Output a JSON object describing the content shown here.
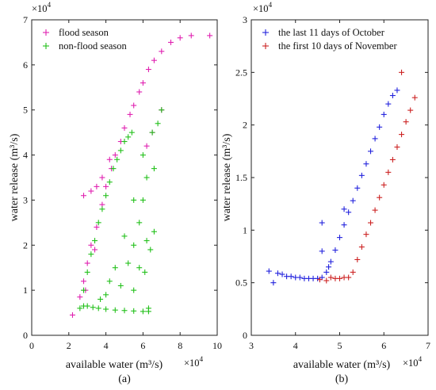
{
  "chart_data": [
    {
      "type": "scatter",
      "panel_label": "(a)",
      "xlabel": "available water (m³/s)",
      "ylabel": "water release (m³/s)",
      "x_multiplier": "×10",
      "x_exponent": "4",
      "y_multiplier": "×10",
      "y_exponent": "4",
      "xlim": [
        0,
        10
      ],
      "ylim": [
        0,
        7
      ],
      "xticks": [
        "0",
        "2",
        "4",
        "6",
        "8",
        "10"
      ],
      "yticks": [
        "0",
        "1",
        "2",
        "3",
        "4",
        "5",
        "6",
        "7"
      ],
      "legend_position": "top-left",
      "grid": false,
      "series": [
        {
          "name": "flood season",
          "color": "#e020b0",
          "marker": "+",
          "points": [
            [
              2.2,
              0.45
            ],
            [
              2.6,
              0.85
            ],
            [
              2.8,
              1.2
            ],
            [
              3.0,
              1.6
            ],
            [
              3.2,
              2.0
            ],
            [
              3.5,
              2.4
            ],
            [
              3.8,
              2.9
            ],
            [
              4.0,
              3.3
            ],
            [
              4.3,
              3.7
            ],
            [
              4.5,
              4.0
            ],
            [
              4.8,
              4.3
            ],
            [
              5.0,
              4.6
            ],
            [
              5.3,
              4.9
            ],
            [
              5.5,
              5.1
            ],
            [
              5.8,
              5.4
            ],
            [
              6.0,
              5.6
            ],
            [
              6.3,
              5.9
            ],
            [
              6.6,
              6.1
            ],
            [
              7.0,
              6.3
            ],
            [
              7.5,
              6.5
            ],
            [
              8.0,
              6.6
            ],
            [
              8.6,
              6.65
            ],
            [
              9.6,
              6.65
            ],
            [
              2.8,
              3.1
            ],
            [
              3.2,
              3.2
            ],
            [
              3.5,
              3.3
            ],
            [
              3.8,
              3.5
            ],
            [
              4.2,
              3.9
            ],
            [
              2.9,
              1.0
            ],
            [
              3.4,
              1.9
            ],
            [
              6.2,
              4.2
            ],
            [
              6.5,
              4.5
            ],
            [
              7.0,
              5.0
            ]
          ]
        },
        {
          "name": "non-flood season",
          "color": "#22c01a",
          "marker": "+",
          "points": [
            [
              2.6,
              0.6
            ],
            [
              2.8,
              0.65
            ],
            [
              3.0,
              0.65
            ],
            [
              3.3,
              0.62
            ],
            [
              3.6,
              0.6
            ],
            [
              4.0,
              0.58
            ],
            [
              4.5,
              0.56
            ],
            [
              5.0,
              0.55
            ],
            [
              5.5,
              0.54
            ],
            [
              6.0,
              0.53
            ],
            [
              6.3,
              0.53
            ],
            [
              6.3,
              0.6
            ],
            [
              2.8,
              1.0
            ],
            [
              3.0,
              1.4
            ],
            [
              3.2,
              1.8
            ],
            [
              3.4,
              2.1
            ],
            [
              3.6,
              2.5
            ],
            [
              3.8,
              2.8
            ],
            [
              4.0,
              3.1
            ],
            [
              4.2,
              3.4
            ],
            [
              4.4,
              3.7
            ],
            [
              4.6,
              3.9
            ],
            [
              4.8,
              4.1
            ],
            [
              5.0,
              4.3
            ],
            [
              5.2,
              4.4
            ],
            [
              5.4,
              4.5
            ],
            [
              5.5,
              1.0
            ],
            [
              5.5,
              2.0
            ],
            [
              5.5,
              3.0
            ],
            [
              5.8,
              1.5
            ],
            [
              5.8,
              2.5
            ],
            [
              6.0,
              3.0
            ],
            [
              6.0,
              4.0
            ],
            [
              6.2,
              2.1
            ],
            [
              6.2,
              3.5
            ],
            [
              6.5,
              4.5
            ],
            [
              6.6,
              3.7
            ],
            [
              6.8,
              4.7
            ],
            [
              7.0,
              5.0
            ],
            [
              4.0,
              0.9
            ],
            [
              4.5,
              1.5
            ],
            [
              5.0,
              2.2
            ],
            [
              4.2,
              1.2
            ],
            [
              3.7,
              0.8
            ],
            [
              4.8,
              1.1
            ],
            [
              5.2,
              1.6
            ],
            [
              6.1,
              1.4
            ],
            [
              6.4,
              1.9
            ],
            [
              6.6,
              2.3
            ]
          ]
        }
      ]
    },
    {
      "type": "scatter",
      "panel_label": "(b)",
      "xlabel": "available water (m³/s)",
      "ylabel": "water release (m³/s)",
      "x_multiplier": "×10",
      "x_exponent": "4",
      "y_multiplier": "×10",
      "y_exponent": "4",
      "xlim": [
        3,
        7
      ],
      "ylim": [
        0,
        3
      ],
      "xticks": [
        "3",
        "4",
        "5",
        "6",
        "7"
      ],
      "yticks": [
        "0",
        "0.5",
        "1",
        "1.5",
        "2",
        "2.5",
        "3"
      ],
      "legend_position": "top-left",
      "grid": false,
      "series": [
        {
          "name": "the last 11 days of October",
          "color": "#2222dd",
          "marker": "+",
          "points": [
            [
              3.4,
              0.61
            ],
            [
              3.5,
              0.5
            ],
            [
              3.6,
              0.59
            ],
            [
              3.7,
              0.58
            ],
            [
              3.8,
              0.56
            ],
            [
              3.9,
              0.56
            ],
            [
              4.0,
              0.55
            ],
            [
              4.1,
              0.55
            ],
            [
              4.2,
              0.54
            ],
            [
              4.3,
              0.54
            ],
            [
              4.4,
              0.54
            ],
            [
              4.5,
              0.54
            ],
            [
              4.6,
              0.55
            ],
            [
              4.6,
              1.07
            ],
            [
              4.6,
              0.8
            ],
            [
              4.7,
              0.6
            ],
            [
              4.75,
              0.65
            ],
            [
              4.8,
              0.7
            ],
            [
              4.9,
              0.81
            ],
            [
              5.0,
              0.93
            ],
            [
              5.1,
              1.05
            ],
            [
              5.1,
              1.2
            ],
            [
              5.2,
              1.17
            ],
            [
              5.3,
              1.28
            ],
            [
              5.4,
              1.4
            ],
            [
              5.5,
              1.52
            ],
            [
              5.6,
              1.63
            ],
            [
              5.7,
              1.75
            ],
            [
              5.8,
              1.87
            ],
            [
              5.9,
              1.98
            ],
            [
              6.0,
              2.1
            ],
            [
              6.1,
              2.2
            ],
            [
              6.2,
              2.28
            ],
            [
              6.3,
              2.33
            ]
          ]
        },
        {
          "name": "the first 10 days of November",
          "color": "#cc2222",
          "marker": "+",
          "points": [
            [
              4.55,
              0.53
            ],
            [
              4.7,
              0.52
            ],
            [
              4.8,
              0.55
            ],
            [
              4.9,
              0.54
            ],
            [
              5.0,
              0.54
            ],
            [
              5.1,
              0.55
            ],
            [
              5.2,
              0.55
            ],
            [
              5.3,
              0.6
            ],
            [
              5.4,
              0.72
            ],
            [
              5.5,
              0.84
            ],
            [
              5.6,
              0.96
            ],
            [
              5.7,
              1.07
            ],
            [
              5.8,
              1.19
            ],
            [
              5.9,
              1.31
            ],
            [
              6.0,
              1.43
            ],
            [
              6.1,
              1.55
            ],
            [
              6.2,
              1.67
            ],
            [
              6.3,
              1.79
            ],
            [
              6.4,
              1.91
            ],
            [
              6.5,
              2.03
            ],
            [
              6.6,
              2.14
            ],
            [
              6.7,
              2.26
            ],
            [
              6.4,
              2.5
            ]
          ]
        }
      ]
    }
  ]
}
